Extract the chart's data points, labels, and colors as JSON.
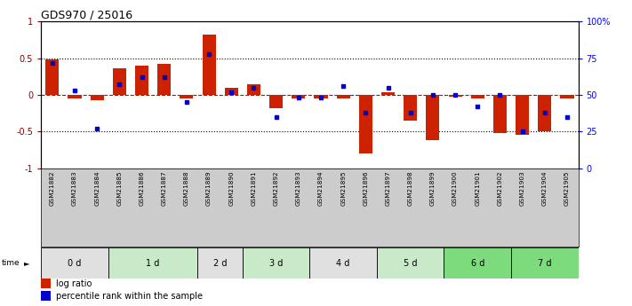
{
  "title": "GDS970 / 25016",
  "samples": [
    "GSM21882",
    "GSM21883",
    "GSM21884",
    "GSM21885",
    "GSM21886",
    "GSM21887",
    "GSM21888",
    "GSM21889",
    "GSM21890",
    "GSM21891",
    "GSM21892",
    "GSM21893",
    "GSM21894",
    "GSM21895",
    "GSM21896",
    "GSM21897",
    "GSM21898",
    "GSM21899",
    "GSM21900",
    "GSM21901",
    "GSM21902",
    "GSM21903",
    "GSM21904",
    "GSM21905"
  ],
  "log_ratio": [
    0.48,
    -0.05,
    -0.07,
    0.36,
    0.4,
    0.42,
    -0.05,
    0.82,
    0.1,
    0.15,
    -0.18,
    -0.05,
    -0.05,
    -0.05,
    -0.8,
    0.03,
    -0.35,
    -0.62,
    -0.02,
    -0.05,
    -0.52,
    -0.55,
    -0.5,
    -0.05
  ],
  "percentile": [
    0.72,
    0.53,
    0.27,
    0.57,
    0.62,
    0.62,
    0.45,
    0.78,
    0.52,
    0.55,
    0.35,
    0.48,
    0.48,
    0.56,
    0.38,
    0.55,
    0.38,
    0.5,
    0.5,
    0.42,
    0.5,
    0.25,
    0.38,
    0.35
  ],
  "time_groups": [
    {
      "label": "0 d",
      "indices": [
        0,
        1,
        2
      ],
      "color": "#e0e0e0"
    },
    {
      "label": "1 d",
      "indices": [
        3,
        4,
        5,
        6
      ],
      "color": "#c8eac8"
    },
    {
      "label": "2 d",
      "indices": [
        7,
        8
      ],
      "color": "#e0e0e0"
    },
    {
      "label": "3 d",
      "indices": [
        9,
        10,
        11
      ],
      "color": "#c8eac8"
    },
    {
      "label": "4 d",
      "indices": [
        12,
        13,
        14
      ],
      "color": "#e0e0e0"
    },
    {
      "label": "5 d",
      "indices": [
        15,
        16,
        17
      ],
      "color": "#c8eac8"
    },
    {
      "label": "6 d",
      "indices": [
        18,
        19,
        20
      ],
      "color": "#7dda7d"
    },
    {
      "label": "7 d",
      "indices": [
        21,
        22,
        23
      ],
      "color": "#7dda7d"
    }
  ],
  "bar_color": "#cc2200",
  "dot_color": "#0000cc",
  "ylim": [
    -1,
    1
  ],
  "right_ylim": [
    0,
    100
  ],
  "zero_line_color": "#cc0000",
  "background_color": "#ffffff"
}
